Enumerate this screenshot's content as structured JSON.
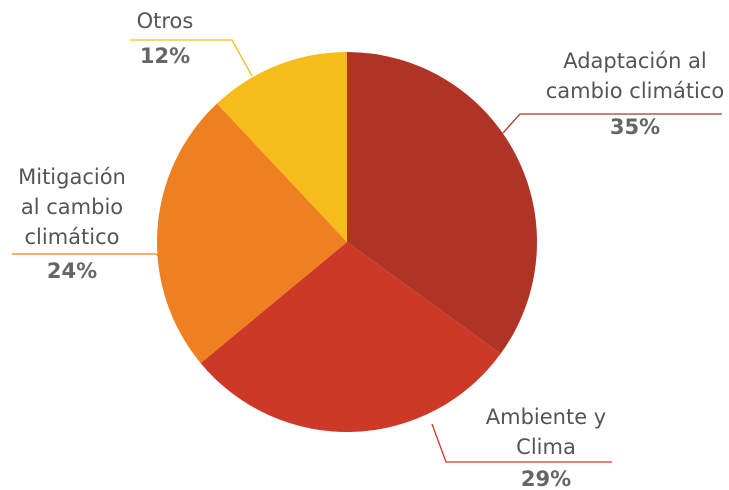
{
  "chart_data": {
    "type": "pie",
    "categories": [
      "Adaptación al\ncambio climático",
      "Ambiente y\nClima",
      "Mitigación\nal cambio\nclimático",
      "Otros"
    ],
    "values": [
      35,
      29,
      24,
      12
    ],
    "value_labels": [
      "35%",
      "29%",
      "24%",
      "12%"
    ],
    "colors": [
      "#b03426",
      "#cc3a27",
      "#ef8022",
      "#f6bc1b"
    ]
  }
}
